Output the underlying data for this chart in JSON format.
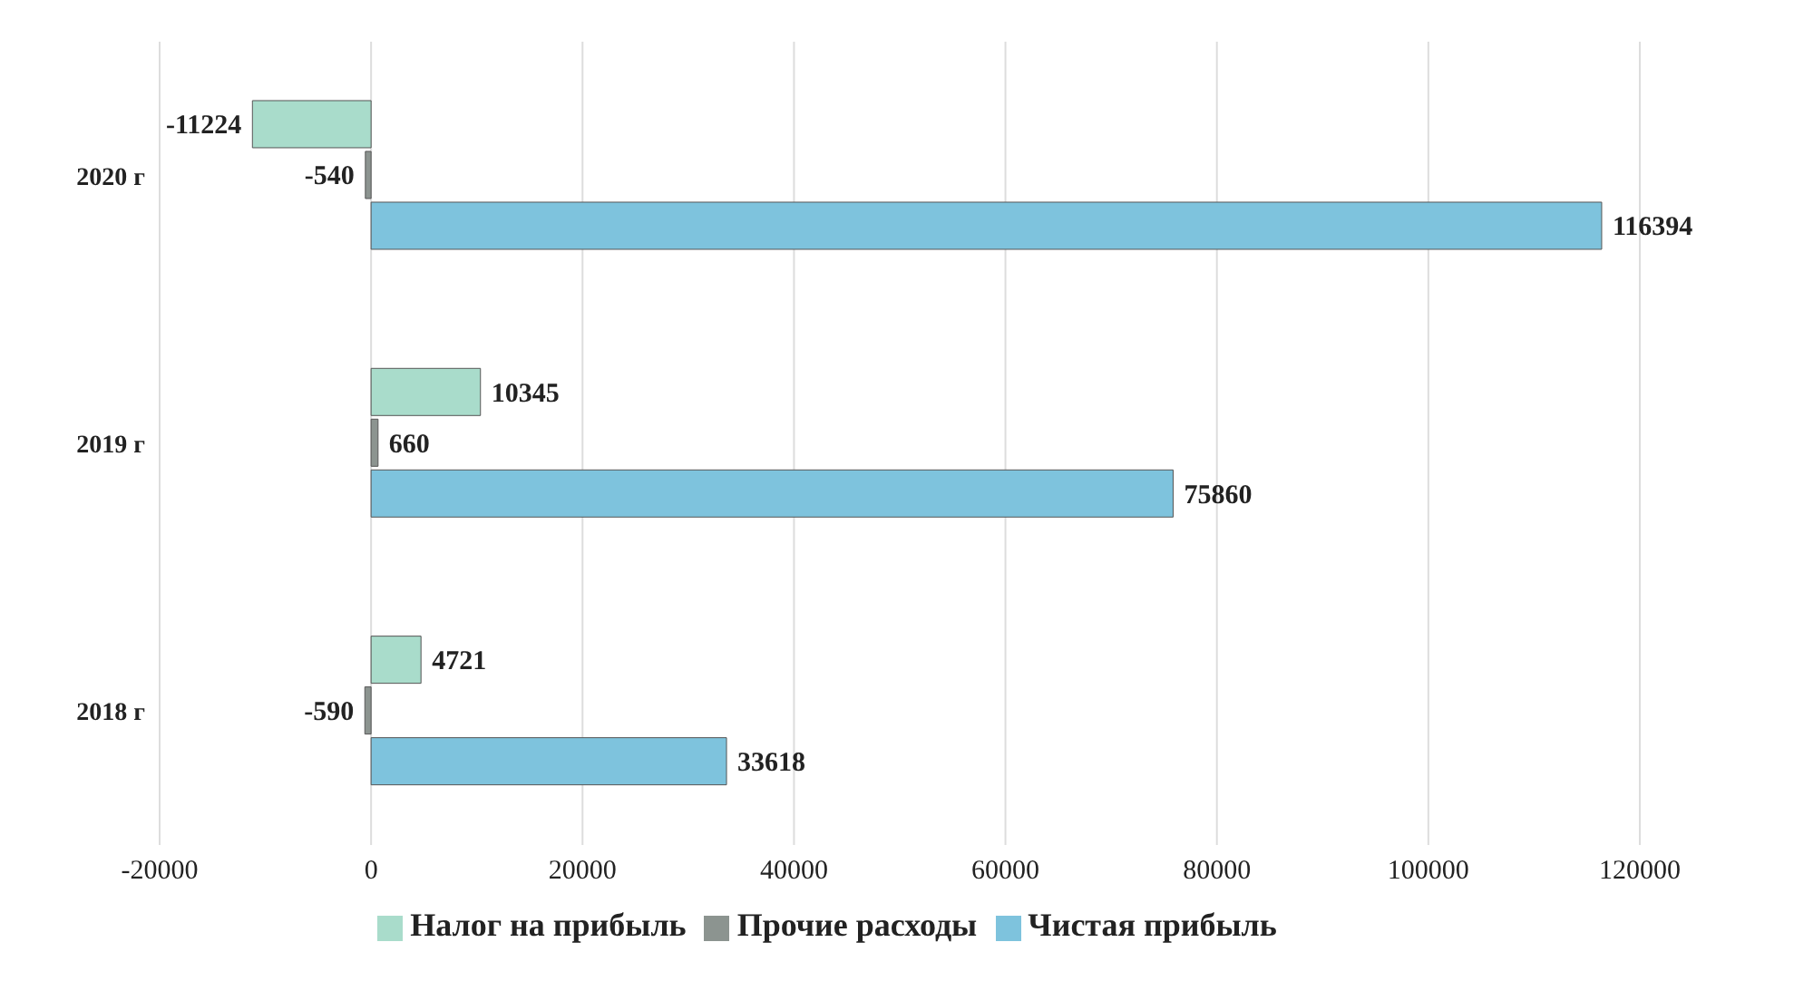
{
  "chart_data": {
    "type": "bar",
    "orientation": "horizontal",
    "categories": [
      "2020 г",
      "2019 г",
      "2018 г"
    ],
    "series": [
      {
        "name": "Налог на прибыль",
        "color": "#a9dccb",
        "values": [
          -11224,
          10345,
          4721
        ]
      },
      {
        "name": "Прочие расходы",
        "color": "#8c9490",
        "values": [
          -540,
          660,
          -590
        ]
      },
      {
        "name": "Чистая прибыль",
        "color": "#7ec3dd",
        "values": [
          116394,
          75860,
          33618
        ]
      }
    ],
    "xlim": [
      -20000,
      120000
    ],
    "xticks": [
      -20000,
      0,
      20000,
      40000,
      60000,
      80000,
      100000,
      120000
    ],
    "grid": "x",
    "legend": "bottom",
    "data_labels": true
  }
}
